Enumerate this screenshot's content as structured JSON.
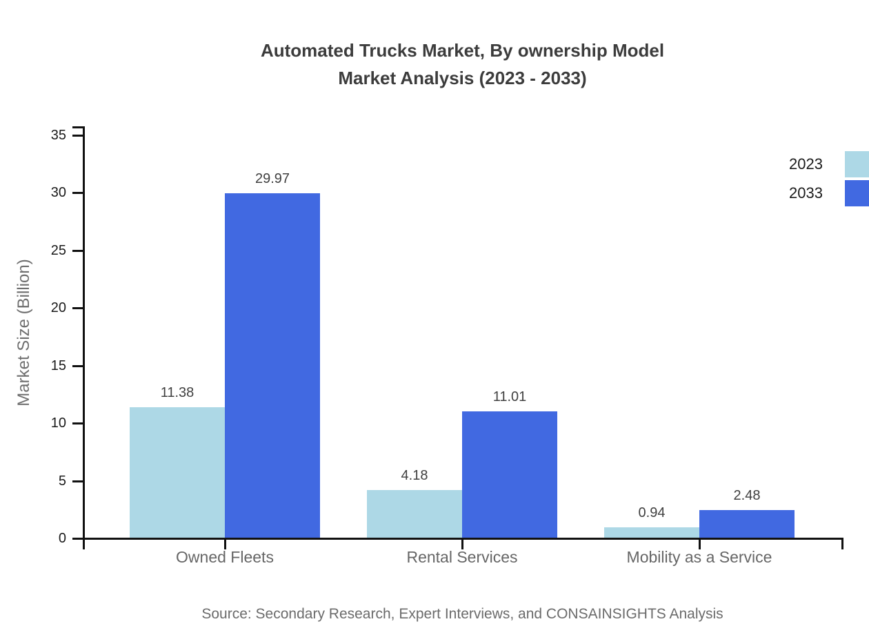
{
  "title": {
    "line1": "Automated Trucks Market, By ownership Model",
    "line2": "Market Analysis (2023 - 2033)"
  },
  "axes": {
    "y_label": "Market Size (Billion)"
  },
  "source": "Source: Secondary Research, Expert Interviews, and CONSAINSIGHTS Analysis",
  "colors": {
    "series_2023": "#ADD8E6",
    "series_2033": "#4169E1",
    "axis": "#111111",
    "title_text": "#3c3c3c",
    "category_text": "#666666",
    "value_text": "#3f3f3f",
    "muted_text": "#6b6b6b"
  },
  "chart_data": {
    "type": "bar",
    "title": "Automated Trucks Market, By ownership Model Market Analysis (2023 - 2033)",
    "categories": [
      "Owned Fleets",
      "Rental Services",
      "Mobility as a Service"
    ],
    "series": [
      {
        "name": "2023",
        "color": "#ADD8E6",
        "values": [
          11.38,
          4.18,
          0.94
        ]
      },
      {
        "name": "2033",
        "color": "#4169E1",
        "values": [
          29.97,
          11.01,
          2.48
        ]
      }
    ],
    "xlabel": "",
    "ylabel": "Market Size (Billion)",
    "ylim": [
      0,
      35
    ],
    "yticks": [
      0,
      5,
      10,
      15,
      20,
      25,
      30,
      35
    ],
    "grid": false,
    "legend_position": "top-right",
    "value_labels": true
  }
}
